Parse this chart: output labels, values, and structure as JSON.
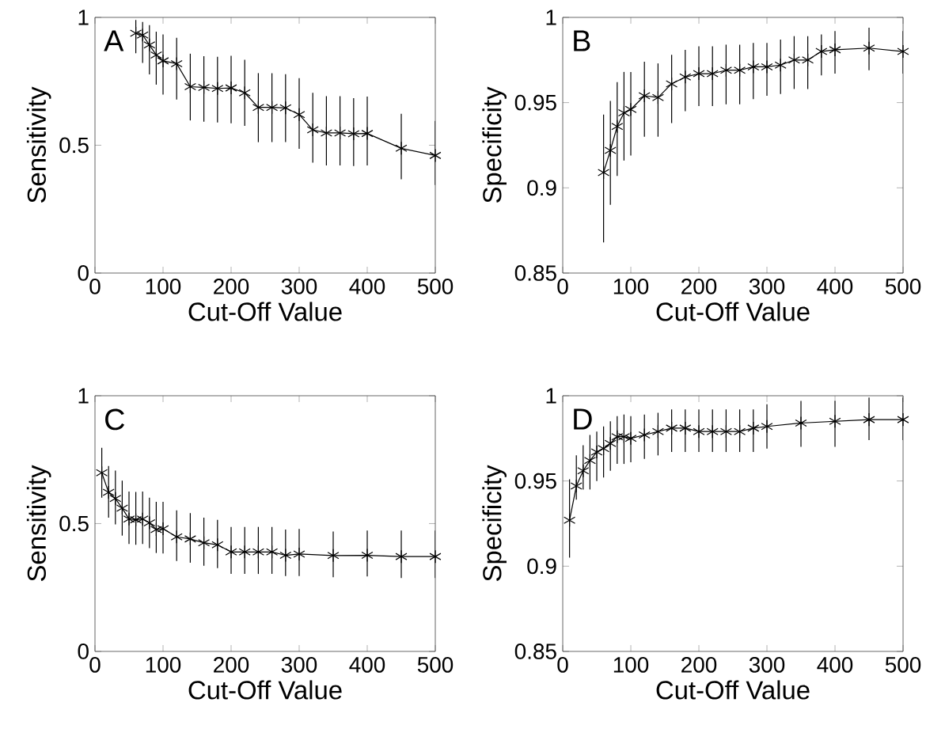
{
  "chart_data": [
    {
      "type": "line",
      "annotations": [
        "A"
      ],
      "xlabel": "Cut-Off Value",
      "ylabel": "Sensitivity",
      "xlim": [
        0,
        500
      ],
      "ylim": [
        0,
        1
      ],
      "xticks": [
        0,
        100,
        200,
        300,
        400,
        500
      ],
      "yticks": [
        0,
        0.5,
        1
      ],
      "marker": "cross",
      "color": "#000000",
      "x": [
        60,
        70,
        80,
        90,
        100,
        120,
        140,
        160,
        180,
        200,
        220,
        240,
        260,
        280,
        300,
        320,
        340,
        360,
        380,
        400,
        450,
        500
      ],
      "values": [
        0.938,
        0.931,
        0.892,
        0.853,
        0.83,
        0.819,
        0.729,
        0.726,
        0.722,
        0.724,
        0.705,
        0.648,
        0.648,
        0.646,
        0.62,
        0.56,
        0.548,
        0.548,
        0.545,
        0.546,
        0.488,
        0.46
      ],
      "errors": [
        [
          0.86,
          0.99
        ],
        [
          0.822,
          0.982
        ],
        [
          0.777,
          0.97
        ],
        [
          0.737,
          0.944
        ],
        [
          0.698,
          0.933
        ],
        [
          0.679,
          0.92
        ],
        [
          0.597,
          0.858
        ],
        [
          0.592,
          0.848
        ],
        [
          0.589,
          0.846
        ],
        [
          0.586,
          0.85
        ],
        [
          0.576,
          0.834
        ],
        [
          0.512,
          0.782
        ],
        [
          0.512,
          0.782
        ],
        [
          0.512,
          0.778
        ],
        [
          0.486,
          0.762
        ],
        [
          0.432,
          0.705
        ],
        [
          0.421,
          0.692
        ],
        [
          0.421,
          0.692
        ],
        [
          0.419,
          0.684
        ],
        [
          0.421,
          0.69
        ],
        [
          0.367,
          0.623
        ],
        [
          0.344,
          0.595
        ]
      ]
    },
    {
      "type": "line",
      "annotations": [
        "B"
      ],
      "xlabel": "Cut-Off Value",
      "ylabel": "Specificity",
      "xlim": [
        0,
        500
      ],
      "ylim": [
        0.85,
        1
      ],
      "xticks": [
        0,
        100,
        200,
        300,
        400,
        500
      ],
      "yticks": [
        0.85,
        0.9,
        0.95,
        1
      ],
      "marker": "cross",
      "color": "#000000",
      "x": [
        60,
        70,
        80,
        90,
        100,
        120,
        140,
        160,
        180,
        200,
        220,
        240,
        260,
        280,
        300,
        320,
        340,
        360,
        380,
        400,
        450,
        500
      ],
      "values": [
        0.909,
        0.922,
        0.936,
        0.944,
        0.946,
        0.954,
        0.953,
        0.961,
        0.965,
        0.967,
        0.967,
        0.969,
        0.969,
        0.971,
        0.971,
        0.972,
        0.975,
        0.975,
        0.98,
        0.981,
        0.982,
        0.98
      ],
      "errors": [
        [
          0.868,
          0.943
        ],
        [
          0.89,
          0.951
        ],
        [
          0.907,
          0.962
        ],
        [
          0.916,
          0.968
        ],
        [
          0.919,
          0.968
        ],
        [
          0.93,
          0.974
        ],
        [
          0.93,
          0.973
        ],
        [
          0.938,
          0.978
        ],
        [
          0.945,
          0.981
        ],
        [
          0.948,
          0.983
        ],
        [
          0.948,
          0.983
        ],
        [
          0.949,
          0.984
        ],
        [
          0.949,
          0.984
        ],
        [
          0.952,
          0.985
        ],
        [
          0.954,
          0.985
        ],
        [
          0.955,
          0.987
        ],
        [
          0.958,
          0.989
        ],
        [
          0.958,
          0.989
        ],
        [
          0.966,
          0.99
        ],
        [
          0.967,
          0.992
        ],
        [
          0.969,
          0.994
        ],
        [
          0.967,
          0.992
        ]
      ]
    },
    {
      "type": "line",
      "annotations": [
        "C"
      ],
      "xlabel": "Cut-Off Value",
      "ylabel": "Sensitivity",
      "xlim": [
        0,
        500
      ],
      "ylim": [
        0,
        1
      ],
      "xticks": [
        0,
        100,
        200,
        300,
        400,
        500
      ],
      "yticks": [
        0,
        0.5,
        1
      ],
      "marker": "cross",
      "color": "#000000",
      "x": [
        10,
        20,
        30,
        40,
        50,
        60,
        70,
        80,
        90,
        100,
        120,
        140,
        160,
        180,
        200,
        220,
        240,
        260,
        280,
        300,
        350,
        400,
        450,
        500
      ],
      "values": [
        0.699,
        0.622,
        0.598,
        0.56,
        0.518,
        0.515,
        0.518,
        0.503,
        0.477,
        0.48,
        0.448,
        0.44,
        0.425,
        0.417,
        0.389,
        0.389,
        0.389,
        0.389,
        0.376,
        0.381,
        0.375,
        0.376,
        0.371,
        0.371
      ],
      "errors": [
        [
          0.601,
          0.796
        ],
        [
          0.523,
          0.725
        ],
        [
          0.497,
          0.707
        ],
        [
          0.453,
          0.668
        ],
        [
          0.42,
          0.625
        ],
        [
          0.417,
          0.624
        ],
        [
          0.42,
          0.625
        ],
        [
          0.404,
          0.601
        ],
        [
          0.385,
          0.585
        ],
        [
          0.383,
          0.585
        ],
        [
          0.354,
          0.552
        ],
        [
          0.347,
          0.541
        ],
        [
          0.335,
          0.523
        ],
        [
          0.326,
          0.515
        ],
        [
          0.303,
          0.487
        ],
        [
          0.303,
          0.487
        ],
        [
          0.303,
          0.487
        ],
        [
          0.303,
          0.487
        ],
        [
          0.295,
          0.477
        ],
        [
          0.295,
          0.479
        ],
        [
          0.29,
          0.469
        ],
        [
          0.293,
          0.473
        ],
        [
          0.287,
          0.473
        ],
        [
          0.287,
          0.473
        ]
      ]
    },
    {
      "type": "line",
      "annotations": [
        "D"
      ],
      "xlabel": "Cut-Off Value",
      "ylabel": "Specificity",
      "xlim": [
        0,
        500
      ],
      "ylim": [
        0.85,
        1
      ],
      "xticks": [
        0,
        100,
        200,
        300,
        400,
        500
      ],
      "yticks": [
        0.85,
        0.9,
        0.95,
        1
      ],
      "marker": "cross",
      "color": "#000000",
      "x": [
        10,
        20,
        30,
        40,
        50,
        60,
        70,
        80,
        90,
        100,
        120,
        140,
        160,
        180,
        200,
        220,
        240,
        260,
        280,
        300,
        350,
        400,
        450,
        500
      ],
      "values": [
        0.927,
        0.947,
        0.956,
        0.962,
        0.967,
        0.969,
        0.972,
        0.976,
        0.976,
        0.975,
        0.977,
        0.979,
        0.981,
        0.981,
        0.979,
        0.979,
        0.979,
        0.979,
        0.981,
        0.982,
        0.984,
        0.985,
        0.986,
        0.986
      ],
      "errors": [
        [
          0.905,
          0.951
        ],
        [
          0.939,
          0.965
        ],
        [
          0.945,
          0.971
        ],
        [
          0.945,
          0.977
        ],
        [
          0.95,
          0.979
        ],
        [
          0.952,
          0.982
        ],
        [
          0.956,
          0.985
        ],
        [
          0.96,
          0.988
        ],
        [
          0.96,
          0.989
        ],
        [
          0.961,
          0.988
        ],
        [
          0.963,
          0.989
        ],
        [
          0.965,
          0.99
        ],
        [
          0.967,
          0.992
        ],
        [
          0.967,
          0.992
        ],
        [
          0.967,
          0.992
        ],
        [
          0.967,
          0.992
        ],
        [
          0.967,
          0.992
        ],
        [
          0.967,
          0.992
        ],
        [
          0.967,
          0.992
        ],
        [
          0.969,
          0.995
        ],
        [
          0.97,
          0.997
        ],
        [
          0.97,
          0.997
        ],
        [
          0.974,
          0.999
        ],
        [
          0.974,
          0.999
        ]
      ]
    }
  ]
}
